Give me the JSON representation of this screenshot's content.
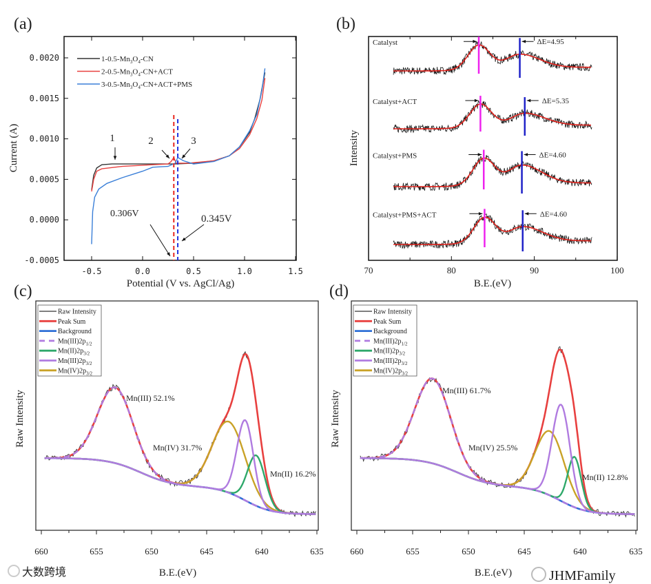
{
  "chart_data": [
    {
      "panel": "(a)",
      "type": "line",
      "xlabel": "Potential (V vs. AgCl/Ag)",
      "ylabel": "Current (A)",
      "xlim": [
        -0.77,
        1.5
      ],
      "ylim": [
        -0.0005,
        0.00226
      ],
      "xticks": [
        "-0.5",
        "0.0",
        "0.5",
        "1.0",
        "1.5"
      ],
      "xtick_values": [
        -0.5,
        0.0,
        0.5,
        1.0,
        1.5
      ],
      "yticks": [
        "-0.0005",
        "0.0000",
        "0.0005",
        "0.0010",
        "0.0015",
        "0.0020"
      ],
      "ytick_values": [
        -0.0005,
        0.0,
        0.0005,
        0.001,
        0.0015,
        0.002
      ],
      "series": [
        {
          "name": "1-0.5-Mn3O4-CN",
          "legend_main": "1-0.5-Mn",
          "legend_sub1": "3",
          "legend_mid": "O",
          "legend_sub2": "4",
          "legend_tail": "-CN",
          "color": "#333333",
          "points": [
            [
              -0.5,
              0.00037
            ],
            [
              -0.48,
              0.00055
            ],
            [
              -0.45,
              0.00064
            ],
            [
              -0.4,
              0.00068
            ],
            [
              -0.3,
              0.00069
            ],
            [
              0.0,
              0.00069
            ],
            [
              0.3,
              0.00069
            ],
            [
              0.5,
              0.0007
            ],
            [
              0.7,
              0.00073
            ],
            [
              0.85,
              0.00079
            ],
            [
              0.95,
              0.0009
            ],
            [
              1.05,
              0.00108
            ],
            [
              1.1,
              0.00125
            ],
            [
              1.15,
              0.00148
            ],
            [
              1.2,
              0.00182
            ]
          ]
        },
        {
          "name": "2-0.5-Mn3O4-CN+ACT",
          "legend_main": "2-0.5-Mn",
          "legend_sub1": "3",
          "legend_mid": "O",
          "legend_sub2": "4",
          "legend_tail": "-CN+ACT",
          "color": "#e8403f",
          "points": [
            [
              -0.5,
              0.00035
            ],
            [
              -0.48,
              0.0005
            ],
            [
              -0.45,
              0.0006
            ],
            [
              -0.4,
              0.00063
            ],
            [
              -0.2,
              0.00066
            ],
            [
              0.1,
              0.00068
            ],
            [
              0.25,
              0.00069
            ],
            [
              0.28,
              0.00072
            ],
            [
              0.306,
              0.00077
            ],
            [
              0.33,
              0.0007
            ],
            [
              0.45,
              0.0007
            ],
            [
              0.7,
              0.00073
            ],
            [
              0.85,
              0.00079
            ],
            [
              0.95,
              0.00088
            ],
            [
              1.05,
              0.00105
            ],
            [
              1.12,
              0.00125
            ],
            [
              1.17,
              0.00148
            ],
            [
              1.2,
              0.00175
            ]
          ]
        },
        {
          "name": "3-0.5-Mn3O4-CN+ACT+PMS",
          "legend_main": "3-0.5-Mn",
          "legend_sub1": "3",
          "legend_mid": "O",
          "legend_sub2": "4",
          "legend_tail": "-CN+ACT+PMS",
          "color": "#3a7fd8",
          "points": [
            [
              -0.5,
              -0.0003
            ],
            [
              -0.49,
              0.0001
            ],
            [
              -0.47,
              0.00028
            ],
            [
              -0.43,
              0.00038
            ],
            [
              -0.35,
              0.00045
            ],
            [
              -0.2,
              0.00052
            ],
            [
              0.0,
              0.0006
            ],
            [
              0.1,
              0.00065
            ],
            [
              0.25,
              0.00066
            ],
            [
              0.32,
              0.0007
            ],
            [
              0.345,
              0.00077
            ],
            [
              0.4,
              0.00073
            ],
            [
              0.5,
              0.00069
            ],
            [
              0.7,
              0.00072
            ],
            [
              0.85,
              0.00079
            ],
            [
              0.95,
              0.0009
            ],
            [
              1.05,
              0.0011
            ],
            [
              1.12,
              0.0013
            ],
            [
              1.17,
              0.0016
            ],
            [
              1.2,
              0.00187
            ]
          ]
        }
      ],
      "annotations": {
        "label1": "1",
        "label2": "2",
        "label3": "3",
        "v1": "0.306V",
        "v2": "0.345V"
      },
      "markers": [
        {
          "x": 0.306,
          "color": "#e8261f"
        },
        {
          "x": 0.345,
          "color": "#2030e0"
        }
      ]
    },
    {
      "panel": "(b)",
      "type": "line",
      "xlabel": "B.E.(eV)",
      "ylabel": "Intensity",
      "xlim": [
        70,
        100
      ],
      "xticks": [
        "70",
        "80",
        "90",
        "100"
      ],
      "xtick_values": [
        70,
        80,
        90,
        100
      ],
      "data_range": [
        73,
        97
      ],
      "series": [
        {
          "name": "Catalyst",
          "offset": 7.2,
          "peak1": 83.3,
          "peak2": 88.25,
          "amp1": 1.0,
          "amp2": 0.55,
          "delta": "ΔE=4.95"
        },
        {
          "name": "Catalyst+ACT",
          "offset": 4.8,
          "peak1": 83.5,
          "peak2": 88.85,
          "amp1": 0.95,
          "amp2": 0.5,
          "delta": "ΔE=5.35"
        },
        {
          "name": "Catalyst+PMS",
          "offset": 2.4,
          "peak1": 83.9,
          "peak2": 88.5,
          "amp1": 1.1,
          "amp2": 0.75,
          "delta": "ΔE=4.60"
        },
        {
          "name": "Catalyst+PMS+ACT",
          "offset": 0,
          "peak1": 84.0,
          "peak2": 88.6,
          "amp1": 1.05,
          "amp2": 0.6,
          "delta": "ΔE=4.60"
        }
      ],
      "colors": {
        "raw": "#111111",
        "fit": "#e0201a",
        "peak1_marker": "#ee22ee",
        "peak2_marker": "#1f22c8"
      }
    },
    {
      "panel": "(c)",
      "type": "line",
      "xlabel": "B.E.(eV)",
      "ylabel": "Raw Intensity",
      "xlim": [
        660.5,
        634.9
      ],
      "xticks": [
        "660",
        "655",
        "650",
        "645",
        "640",
        "635"
      ],
      "xtick_values": [
        660,
        655,
        650,
        645,
        640,
        635
      ],
      "background": {
        "low": 7,
        "step1": 12,
        "center1": 641.5,
        "width1": 1.2,
        "step2": 12.5,
        "center2": 651,
        "width2": 1.5
      },
      "components": [
        {
          "key": "mn3_12",
          "center": 653.3,
          "amp": 33,
          "sigma": 1.6
        },
        {
          "key": "mn2_32",
          "center": 640.5,
          "amp": 22,
          "sigma": 0.8
        },
        {
          "key": "mn3_32",
          "center": 641.5,
          "amp": 35,
          "sigma": 0.75
        },
        {
          "key": "mn4_32",
          "center": 643.0,
          "amp": 31,
          "sigma": 1.5
        }
      ],
      "annotations": {
        "mn3": "Mn(III) 52.1%",
        "mn4": "Mn(IV) 31.7%",
        "mn2": "Mn(II) 16.2%"
      }
    },
    {
      "panel": "(d)",
      "type": "line",
      "xlabel": "B.E.(eV)",
      "ylabel": "Raw Intensity",
      "xlim": [
        660.4,
        634.7
      ],
      "xticks": [
        "660",
        "655",
        "650",
        "645",
        "640",
        "635"
      ],
      "xtick_values": [
        660,
        655,
        650,
        645,
        640,
        635
      ],
      "background": {
        "low": 7,
        "step1": 12,
        "center1": 641.8,
        "width1": 1.2,
        "step2": 12.5,
        "center2": 651,
        "width2": 1.5
      },
      "components": [
        {
          "key": "mn3_12",
          "center": 653.2,
          "amp": 37,
          "sigma": 1.6
        },
        {
          "key": "mn2_32",
          "center": 640.5,
          "amp": 22,
          "sigma": 0.6
        },
        {
          "key": "mn3_32",
          "center": 641.7,
          "amp": 42,
          "sigma": 0.8
        },
        {
          "key": "mn4_32",
          "center": 642.7,
          "amp": 28,
          "sigma": 1.3
        }
      ],
      "annotations": {
        "mn3": "Mn(III) 61.7%",
        "mn4": "Mn(IV) 25.5%",
        "mn2": "Mn(II) 12.8%"
      }
    }
  ],
  "xps_legend": [
    {
      "key": "raw",
      "label": "Raw Intensity",
      "sub": "",
      "color": "#333333",
      "dashed": false
    },
    {
      "key": "sum",
      "label": "Peak Sum",
      "sub": "",
      "color": "#e8403f",
      "dashed": false
    },
    {
      "key": "bg",
      "label": "Background",
      "sub": "",
      "color": "#2f6fd6",
      "dashed": false
    },
    {
      "key": "mn3_12",
      "label": "Mn(III)2p",
      "sub": "1/2",
      "color": "#b07be0",
      "dashed": true
    },
    {
      "key": "mn2_32",
      "label": "Mn(II)2p",
      "sub": "3/2",
      "color": "#2ea86a",
      "dashed": false
    },
    {
      "key": "mn3_32",
      "label": "Mn(III)2p",
      "sub": "3/2",
      "color": "#b07be0",
      "dashed": false
    },
    {
      "key": "mn4_32",
      "label": "Mn(IV)2p",
      "sub": "3/2",
      "color": "#c9a227",
      "dashed": false
    }
  ],
  "panel_labels": {
    "a": "(a)",
    "b": "(b)",
    "c": "(c)",
    "d": "(d)"
  },
  "watermarks": {
    "left": "大数跨境",
    "right": "JHMFamily"
  }
}
